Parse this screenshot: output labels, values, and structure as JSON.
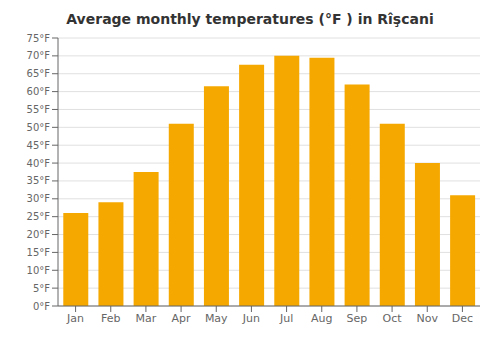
{
  "chart_data": {
    "type": "bar",
    "title": "Average monthly temperatures (°F ) in Rîşcani",
    "categories": [
      "Jan",
      "Feb",
      "Mar",
      "Apr",
      "May",
      "Jun",
      "Jul",
      "Aug",
      "Sep",
      "Oct",
      "Nov",
      "Dec"
    ],
    "values": [
      26.0,
      29.0,
      37.5,
      51.0,
      61.5,
      67.5,
      70.0,
      69.5,
      62.0,
      51.0,
      40.0,
      31.0
    ],
    "color": "#F5A800",
    "ylim": [
      0,
      75
    ],
    "yticks": [
      {
        "value": 0,
        "label": "0°F"
      },
      {
        "value": 5,
        "label": "5°F"
      },
      {
        "value": 10,
        "label": "10°F"
      },
      {
        "value": 15,
        "label": "15°F"
      },
      {
        "value": 20,
        "label": "20°F"
      },
      {
        "value": 25,
        "label": "25°F"
      },
      {
        "value": 30,
        "label": "30°F"
      },
      {
        "value": 35,
        "label": "35°F"
      },
      {
        "value": 40,
        "label": "40°F"
      },
      {
        "value": 45,
        "label": "45°F"
      },
      {
        "value": 50,
        "label": "50°F"
      },
      {
        "value": 55,
        "label": "55°F"
      },
      {
        "value": 60,
        "label": "60°F"
      },
      {
        "value": 65,
        "label": "65°F"
      },
      {
        "value": 70,
        "label": "70°F"
      },
      {
        "value": 75,
        "label": "75°F"
      }
    ],
    "grid": true
  }
}
